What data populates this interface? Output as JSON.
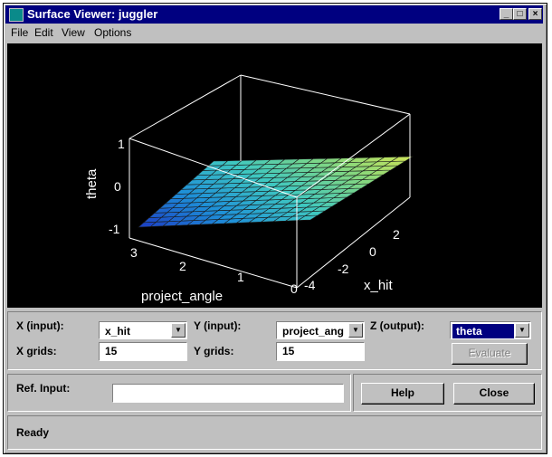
{
  "window": {
    "title": "Surface Viewer: juggler",
    "controls": {
      "minimize": "_",
      "maximize": "□",
      "close": "×"
    }
  },
  "menu": {
    "items": [
      "File",
      "Edit",
      "View",
      "Options"
    ]
  },
  "plot": {
    "zlabel": "theta",
    "xlabel": "project_angle",
    "ylabel": "x_hit",
    "z_ticks": [
      "1",
      "0",
      "-1"
    ],
    "x_ticks": [
      "3",
      "2",
      "1",
      "0"
    ],
    "y_ticks": [
      "-4",
      "-2",
      "0",
      "2"
    ],
    "background": "#000000",
    "colormap": [
      "#1b3fc4",
      "#1e8fd8",
      "#3fc8c0",
      "#8ad87a",
      "#e8e84a"
    ]
  },
  "controls": {
    "x_input_label": "X (input):",
    "x_input_value": "x_hit",
    "y_input_label": "Y (input):",
    "y_input_value": "project_ang",
    "z_output_label": "Z (output):",
    "z_output_value": "theta",
    "x_grids_label": "X grids:",
    "x_grids_value": "15",
    "y_grids_label": "Y grids:",
    "y_grids_value": "15",
    "evaluate_label": "Evaluate"
  },
  "ref": {
    "label": "Ref. Input:",
    "value": "",
    "help_label": "Help",
    "close_label": "Close"
  },
  "status": {
    "text": "Ready"
  }
}
